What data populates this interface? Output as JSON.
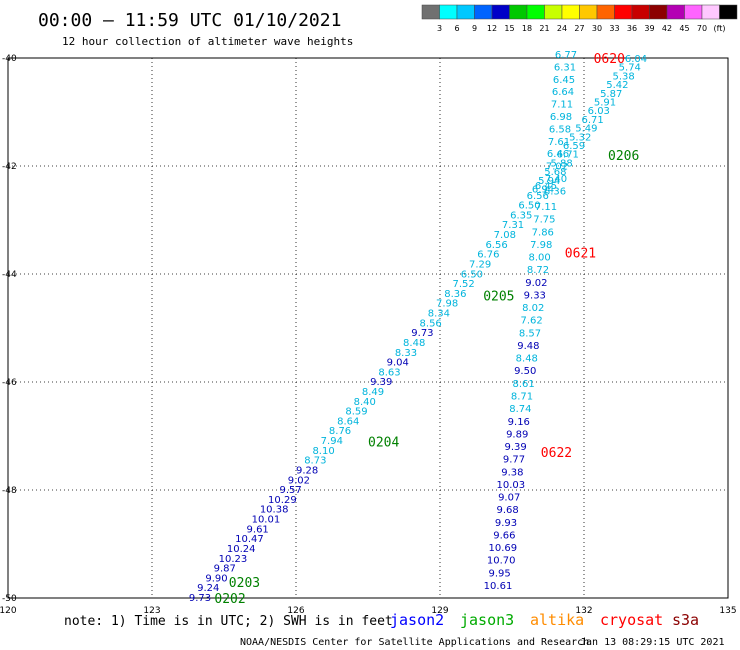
{
  "header": {
    "title": "00:00 – 11:59 UTC 01/10/2021",
    "subtitle": "12 hour collection of altimeter wave heights"
  },
  "colorbar": {
    "labels": [
      "3",
      "6",
      "9",
      "12",
      "15",
      "18",
      "21",
      "24",
      "27",
      "30",
      "33",
      "36",
      "39",
      "42",
      "45",
      "70",
      "(ft)"
    ],
    "colors": [
      "#707070",
      "#00ffff",
      "#00c8ff",
      "#0064ff",
      "#0000c8",
      "#00c800",
      "#00ff00",
      "#c8ff00",
      "#ffff00",
      "#ffc800",
      "#ff6400",
      "#ff0000",
      "#c80000",
      "#8c0000",
      "#b400b4",
      "#ff64ff",
      "#ffc8ff",
      "#000000"
    ]
  },
  "axes": {
    "lat_labels": [
      "-40",
      "-42",
      "-44",
      "-46",
      "-48",
      "-50"
    ],
    "lon_labels": [
      "120",
      "123",
      "126",
      "129",
      "132",
      "135"
    ]
  },
  "footer": {
    "note": "note: 1) Time is in UTC; 2) SWH is in feet",
    "credit": "NOAA/NESDIS Center for Satellite Applications and Research",
    "timestamp": "Jan 13 08:29:15 UTC 2021",
    "satellites": [
      {
        "name": "jason2",
        "color": "#0000ff"
      },
      {
        "name": "jason3",
        "color": "#00aa00"
      },
      {
        "name": "altika",
        "color": "#ff8c00"
      },
      {
        "name": "cryosat",
        "color": "#ff0000"
      },
      {
        "name": "s3a",
        "color": "#8b0000"
      }
    ]
  },
  "map_data": {
    "lon_range": [
      120,
      135
    ],
    "lat_range": [
      -50,
      -40
    ],
    "colors": {
      "light": "#00b4dc",
      "dark": "#0000b4"
    },
    "pass_labels": [
      {
        "label": "0620",
        "lon": 132.2,
        "lat": -40.0,
        "color": "#ff0000"
      },
      {
        "label": "0206",
        "lon": 132.5,
        "lat": -41.8,
        "color": "#008000"
      },
      {
        "label": "0621",
        "lon": 131.6,
        "lat": -43.6,
        "color": "#ff0000"
      },
      {
        "label": "0205",
        "lon": 129.9,
        "lat": -44.4,
        "color": "#008000"
      },
      {
        "label": "0204",
        "lon": 127.5,
        "lat": -47.1,
        "color": "#008000"
      },
      {
        "label": "0622",
        "lon": 131.1,
        "lat": -47.3,
        "color": "#ff0000"
      },
      {
        "label": "0203",
        "lon": 124.6,
        "lat": -49.7,
        "color": "#008000"
      },
      {
        "label": "0202",
        "lon": 124.3,
        "lat": -50.0,
        "color": "#008000"
      }
    ],
    "track_a": {
      "comment_free": true,
      "start": [
        131.3,
        -40.0
      ],
      "end": [
        130.4,
        -43.15
      ],
      "values": [
        "6.77",
        "6.31",
        "6.45",
        "6.64",
        "7.11",
        "6.98",
        "6.58",
        "7.61",
        "6.46",
        "7.02",
        "7.40",
        "6.36"
      ],
      "shades": [
        "light",
        "light",
        "light",
        "light",
        "light",
        "light",
        "light",
        "light",
        "light",
        "light",
        "light",
        "light"
      ]
    },
    "track_b": {
      "start": [
        132.2,
        -40.05
      ],
      "end": [
        130.2,
        -42.9
      ],
      "values": [
        "6.04",
        "5.74",
        "5.38",
        "5.42",
        "5.87",
        "5.91",
        "6.03",
        "6.71",
        "5.49",
        "5.32",
        "6.59",
        "6.71",
        "5.88",
        "5.68",
        "5.94",
        "6.94"
      ],
      "shades": [
        "light",
        "light",
        "light",
        "light",
        "light",
        "light",
        "light",
        "light",
        "light",
        "light",
        "light",
        "light",
        "light",
        "light",
        "light",
        "light"
      ]
    },
    "track_c": {
      "start": [
        130.3,
        -43.0
      ],
      "end": [
        130.3,
        -52.0
      ],
      "values": [
        "6.45",
        "6.56",
        "6.50",
        "6.35",
        "7.31",
        "7.08",
        "6.56",
        "6.76",
        "7.29",
        "6.50",
        "7.52",
        "8.36",
        "7.98",
        "8.34",
        "8.56",
        "9.73",
        "8.48",
        "8.33",
        "9.04",
        "8.63",
        "9.39",
        "8.49",
        "8.40",
        "8.59",
        "8.64",
        "8.76",
        "7.94",
        "8.10",
        "8.73",
        "9.28",
        "9.02",
        "9.57",
        "10.29",
        "10.38",
        "10.01",
        "9.61",
        "10.47",
        "10.24",
        "10.23",
        "9.87",
        "9.90",
        "9.24",
        "9.73"
      ],
      "shades": [
        "light",
        "light",
        "light",
        "light",
        "light",
        "light",
        "light",
        "light",
        "light",
        "light",
        "light",
        "light",
        "light",
        "light",
        "light",
        "dark",
        "light",
        "light",
        "dark",
        "light",
        "dark",
        "light",
        "light",
        "light",
        "light",
        "light",
        "light",
        "light",
        "light",
        "dark",
        "dark",
        "dark",
        "dark",
        "dark",
        "dark",
        "dark",
        "dark",
        "dark",
        "dark",
        "dark",
        "dark",
        "dark",
        "dark"
      ]
    },
    "track_d": {
      "values": [
        "7.11",
        "7.75",
        "7.86",
        "7.98",
        "8.00",
        "8.72",
        "9.02",
        "9.33",
        "8.02",
        "7.62",
        "8.57",
        "9.48",
        "8.48",
        "9.50",
        "8.61",
        "8.71",
        "8.74",
        "9.16",
        "9.89",
        "9.39",
        "9.77",
        "9.38",
        "10.03",
        "9.07",
        "9.68",
        "9.93",
        "9.66",
        "10.69",
        "10.70",
        "9.95",
        "10.61"
      ],
      "shades": [
        "light",
        "light",
        "light",
        "light",
        "light",
        "light",
        "dark",
        "dark",
        "light",
        "light",
        "light",
        "dark",
        "light",
        "dark",
        "light",
        "light",
        "light",
        "dark",
        "dark",
        "dark",
        "dark",
        "dark",
        "dark",
        "dark",
        "dark",
        "dark",
        "dark",
        "dark",
        "dark",
        "dark",
        "dark"
      ]
    }
  }
}
